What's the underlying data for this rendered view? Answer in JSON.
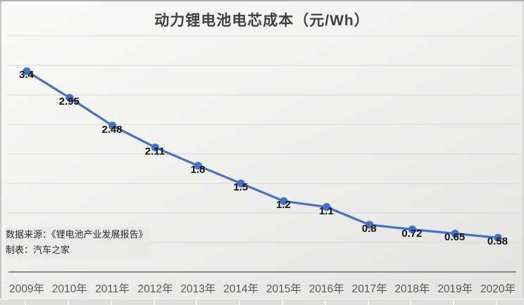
{
  "title": "动力锂电池电芯成本（元/Wh）",
  "source": {
    "line1": "数据来源：《锂电池产业发展报告》",
    "line2": "制表：汽车之家"
  },
  "chart_data": {
    "type": "line",
    "title": "动力锂电池电芯成本（元/Wh）",
    "categories": [
      "2009年",
      "2010年",
      "2011年",
      "2012年",
      "2013年",
      "2014年",
      "2015年",
      "2016年",
      "2017年",
      "2018年",
      "2019年",
      "2020年"
    ],
    "values": [
      3.4,
      2.95,
      2.48,
      2.11,
      1.8,
      1.5,
      1.2,
      1.1,
      0.8,
      0.72,
      0.65,
      0.58
    ],
    "data_labels": [
      "3.4",
      "2.95",
      "2.48",
      "2.11",
      "1.8",
      "1.5",
      "1.2",
      "1.1",
      "0.8",
      "0.72",
      "0.65",
      "0.58"
    ],
    "xlabel": "",
    "ylabel": "",
    "ylim": [
      0,
      4
    ],
    "gridline_step": 0.5,
    "grid": true,
    "legend": "none",
    "marker": "circle",
    "show_data_labels": true,
    "y_axis_labels_visible": false
  },
  "colors": {
    "series_line": "#4472C4",
    "marker_fill": "#4472C4",
    "gridline": "#d8d8d7",
    "axis_line": "#6b6b6b",
    "data_label_text": "#141414",
    "x_label_text": "#595959",
    "title_text": "#3f3f3f"
  }
}
